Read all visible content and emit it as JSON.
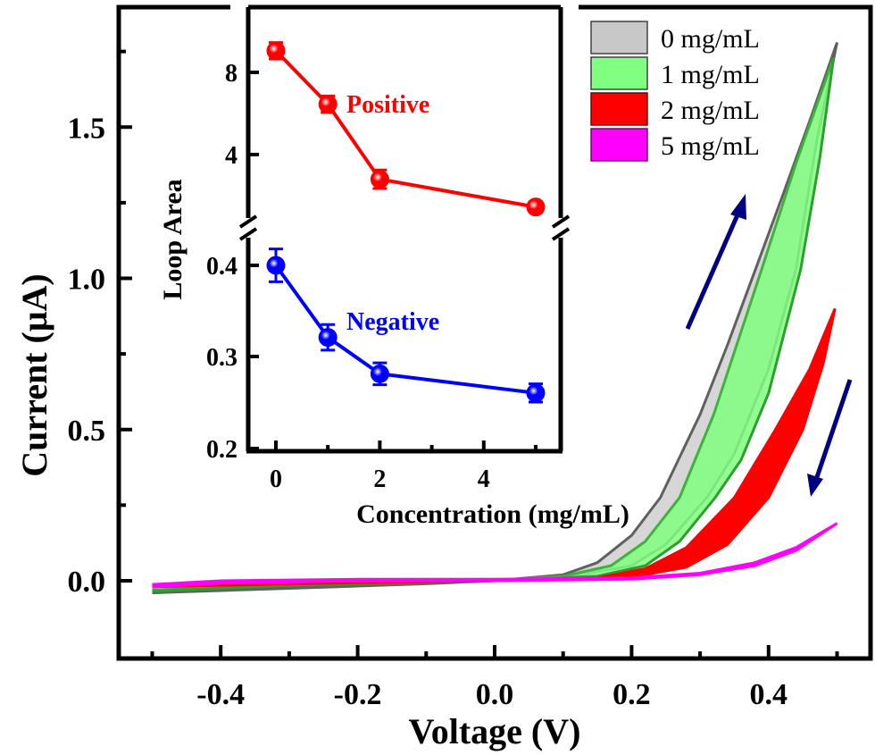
{
  "chart_data": [
    {
      "type": "area",
      "title": "",
      "xlabel": "Voltage (V)",
      "ylabel": "Current (μA)",
      "xlim": [
        -0.55,
        0.55
      ],
      "ylim": [
        -0.25,
        1.85
      ],
      "xticks": [
        -0.4,
        -0.2,
        0.0,
        0.2,
        0.4
      ],
      "xtick_labels": [
        "-0.4",
        "-0.2",
        "0.0",
        "0.2",
        "0.4"
      ],
      "yticks": [
        0.0,
        0.5,
        1.0,
        1.5
      ],
      "ytick_labels": [
        "0.0",
        "0.5",
        "1.0",
        "1.5"
      ],
      "grid": false,
      "legend_position": "top-right",
      "series": [
        {
          "name": "0 mg/mL",
          "fill": "#c8c8c8",
          "line": "#606060",
          "forward": [
            [
              -0.5,
              -0.04
            ],
            [
              -0.3,
              -0.02
            ],
            [
              -0.1,
              -0.005
            ],
            [
              0.0,
              0.0
            ],
            [
              0.1,
              0.02
            ],
            [
              0.15,
              0.06
            ],
            [
              0.2,
              0.15
            ],
            [
              0.242,
              0.275
            ],
            [
              0.3,
              0.55
            ],
            [
              0.34,
              0.78
            ],
            [
              0.381,
              1.03
            ],
            [
              0.42,
              1.27
            ],
            [
              0.46,
              1.52
            ],
            [
              0.5,
              1.78
            ]
          ],
          "reverse": [
            [
              0.5,
              1.78
            ],
            [
              0.47,
              1.45
            ],
            [
              0.44,
              1.03
            ],
            [
              0.4,
              0.7
            ],
            [
              0.35,
              0.42
            ],
            [
              0.31,
              0.275
            ],
            [
              0.25,
              0.12
            ],
            [
              0.2,
              0.05
            ],
            [
              0.1,
              0.01
            ],
            [
              0.0,
              0.0
            ],
            [
              -0.1,
              -0.01
            ],
            [
              -0.3,
              -0.025
            ],
            [
              -0.5,
              -0.04
            ]
          ]
        },
        {
          "name": "1 mg/mL",
          "fill": "#80ff80",
          "line": "#3cb43c",
          "forward": [
            [
              -0.5,
              -0.03
            ],
            [
              -0.3,
              -0.01
            ],
            [
              0.0,
              0.0
            ],
            [
              0.1,
              0.015
            ],
            [
              0.17,
              0.05
            ],
            [
              0.22,
              0.13
            ],
            [
              0.27,
              0.275
            ],
            [
              0.32,
              0.55
            ],
            [
              0.39,
              1.03
            ],
            [
              0.44,
              1.38
            ],
            [
              0.495,
              1.73
            ]
          ],
          "reverse": [
            [
              0.495,
              1.73
            ],
            [
              0.475,
              1.4
            ],
            [
              0.447,
              1.03
            ],
            [
              0.4,
              0.62
            ],
            [
              0.36,
              0.4
            ],
            [
              0.322,
              0.275
            ],
            [
              0.27,
              0.13
            ],
            [
              0.22,
              0.05
            ],
            [
              0.15,
              0.015
            ],
            [
              0.0,
              0.0
            ],
            [
              -0.3,
              -0.015
            ],
            [
              -0.5,
              -0.035
            ]
          ]
        },
        {
          "name": "2 mg/mL",
          "fill": "#ff0000",
          "line": "#ff0000",
          "forward": [
            [
              -0.5,
              -0.02
            ],
            [
              -0.3,
              -0.005
            ],
            [
              0.0,
              0.0
            ],
            [
              0.15,
              0.01
            ],
            [
              0.22,
              0.04
            ],
            [
              0.28,
              0.11
            ],
            [
              0.35,
              0.275
            ],
            [
              0.41,
              0.5
            ],
            [
              0.46,
              0.7
            ],
            [
              0.497,
              0.9
            ]
          ],
          "reverse": [
            [
              0.497,
              0.9
            ],
            [
              0.48,
              0.72
            ],
            [
              0.45,
              0.5
            ],
            [
              0.4,
              0.275
            ],
            [
              0.34,
              0.12
            ],
            [
              0.28,
              0.045
            ],
            [
              0.2,
              0.012
            ],
            [
              0.0,
              0.0
            ],
            [
              -0.3,
              -0.01
            ],
            [
              -0.5,
              -0.02
            ]
          ]
        },
        {
          "name": "5 mg/mL",
          "fill": "#ff00ff",
          "line": "#ff00ff",
          "forward": [
            [
              -0.5,
              -0.012
            ],
            [
              -0.4,
              0.0
            ],
            [
              -0.2,
              0.005
            ],
            [
              0.0,
              0.005
            ],
            [
              0.2,
              0.01
            ],
            [
              0.3,
              0.025
            ],
            [
              0.38,
              0.06
            ],
            [
              0.44,
              0.11
            ],
            [
              0.5,
              0.19
            ]
          ],
          "reverse": [
            [
              0.5,
              0.19
            ],
            [
              0.44,
              0.1
            ],
            [
              0.38,
              0.05
            ],
            [
              0.3,
              0.02
            ],
            [
              0.2,
              0.005
            ],
            [
              0.0,
              0.0
            ],
            [
              -0.2,
              0.0
            ],
            [
              -0.4,
              -0.008
            ],
            [
              -0.5,
              -0.02
            ]
          ]
        }
      ],
      "annotations": [
        {
          "type": "arrow",
          "direction": "up",
          "meaning": "forward sweep"
        },
        {
          "type": "arrow",
          "direction": "down",
          "meaning": "reverse sweep"
        }
      ]
    },
    {
      "type": "line",
      "title": "",
      "xlabel": "Concentration (mg/mL)",
      "ylabel": "Loop Area",
      "xlim": [
        -0.5,
        5.5
      ],
      "xticks": [
        0,
        2,
        4
      ],
      "xtick_labels": [
        "0",
        "2",
        "4"
      ],
      "broken_y_axis": true,
      "upper_ylim": [
        1.0,
        10.0
      ],
      "upper_yticks": [
        4,
        8
      ],
      "upper_ytick_labels": [
        "4",
        "8"
      ],
      "lower_ylim": [
        0.2,
        0.43
      ],
      "lower_yticks": [
        0.2,
        0.3,
        0.4
      ],
      "lower_ytick_labels": [
        "0.2",
        "0.3",
        "0.4"
      ],
      "x": [
        0,
        1,
        2,
        5
      ],
      "series": [
        {
          "name": "Positive",
          "color": "#ff0000",
          "values": [
            9.05,
            6.45,
            2.8,
            1.45
          ],
          "errors": [
            0.4,
            0.4,
            0.45,
            0.25
          ]
        },
        {
          "name": "Negative",
          "color": "#0000ff",
          "values": [
            0.4,
            0.321,
            0.281,
            0.26
          ],
          "errors": [
            0.018,
            0.014,
            0.012,
            0.01
          ]
        }
      ]
    }
  ]
}
